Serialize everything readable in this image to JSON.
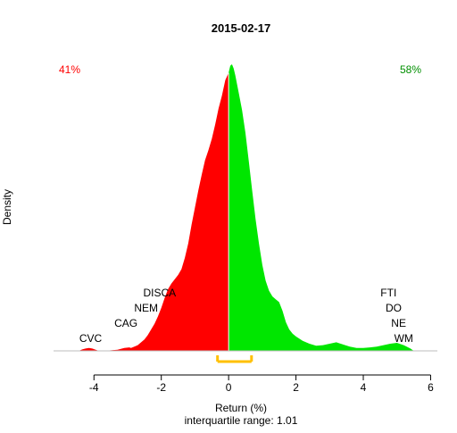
{
  "chart_data": {
    "type": "area",
    "title": "2015-02-17",
    "xlabel": "Return (%)",
    "ylabel": "Density",
    "subtitle": "interquartile range: 1.01",
    "xlim": [
      -5.2,
      6.2
    ],
    "ylim": [
      0,
      1
    ],
    "xticks": [
      -4,
      -2,
      0,
      2,
      4,
      6
    ],
    "split_at": 0,
    "pct_negative": "41%",
    "pct_positive": "58%",
    "colors": {
      "negative": "#ff0000",
      "positive": "#00e600",
      "iqr": "#ffc000",
      "baseline": "#bebebe"
    },
    "iqr": {
      "q1": -0.33,
      "q3": 0.68
    },
    "density": {
      "x": [
        -4.45,
        -4.35,
        -4.25,
        -4.15,
        -4.05,
        -3.95,
        -3.85,
        -3.7,
        -3.5,
        -3.3,
        -3.1,
        -2.95,
        -2.9,
        -2.8,
        -2.7,
        -2.6,
        -2.5,
        -2.4,
        -2.3,
        -2.2,
        -2.1,
        -2.0,
        -1.9,
        -1.8,
        -1.7,
        -1.6,
        -1.5,
        -1.4,
        -1.3,
        -1.2,
        -1.1,
        -1.0,
        -0.9,
        -0.8,
        -0.7,
        -0.6,
        -0.5,
        -0.4,
        -0.3,
        -0.2,
        -0.1,
        0,
        0.05,
        0.1,
        0.15,
        0.2,
        0.25,
        0.3,
        0.4,
        0.5,
        0.6,
        0.7,
        0.8,
        0.9,
        1.0,
        1.1,
        1.2,
        1.3,
        1.4,
        1.5,
        1.6,
        1.7,
        1.8,
        1.9,
        2.0,
        2.2,
        2.4,
        2.6,
        2.8,
        3.0,
        3.2,
        3.4,
        3.6,
        3.8,
        4.0,
        4.2,
        4.4,
        4.6,
        4.8,
        5.0,
        5.2,
        5.4,
        5.5
      ],
      "y": [
        0,
        0.005,
        0.008,
        0.01,
        0.008,
        0.004,
        0,
        0,
        0.002,
        0.004,
        0.01,
        0.012,
        0.01,
        0.015,
        0.02,
        0.03,
        0.04,
        0.055,
        0.075,
        0.095,
        0.12,
        0.15,
        0.185,
        0.215,
        0.235,
        0.25,
        0.265,
        0.285,
        0.325,
        0.375,
        0.44,
        0.5,
        0.56,
        0.615,
        0.665,
        0.7,
        0.74,
        0.79,
        0.845,
        0.89,
        0.945,
        0.97,
        0.995,
        1.0,
        0.985,
        0.96,
        0.93,
        0.9,
        0.84,
        0.76,
        0.66,
        0.56,
        0.46,
        0.375,
        0.3,
        0.245,
        0.21,
        0.19,
        0.18,
        0.17,
        0.14,
        0.1,
        0.075,
        0.06,
        0.05,
        0.035,
        0.025,
        0.018,
        0.02,
        0.025,
        0.03,
        0.022,
        0.015,
        0.01,
        0.01,
        0.012,
        0.015,
        0.02,
        0.025,
        0.028,
        0.02,
        0.008,
        0
      ]
    },
    "annotations": [
      {
        "label": "CVC",
        "x": -4.1,
        "row": 0
      },
      {
        "label": "CAG",
        "x": -3.05,
        "row": 1
      },
      {
        "label": "NEM",
        "x": -2.45,
        "row": 2
      },
      {
        "label": "DISCA",
        "x": -2.05,
        "row": 3
      },
      {
        "label": "FTI",
        "x": 4.75,
        "row": 3
      },
      {
        "label": "DO",
        "x": 4.9,
        "row": 2
      },
      {
        "label": "NE",
        "x": 5.05,
        "row": 1
      },
      {
        "label": "WM",
        "x": 5.2,
        "row": 0
      }
    ]
  }
}
